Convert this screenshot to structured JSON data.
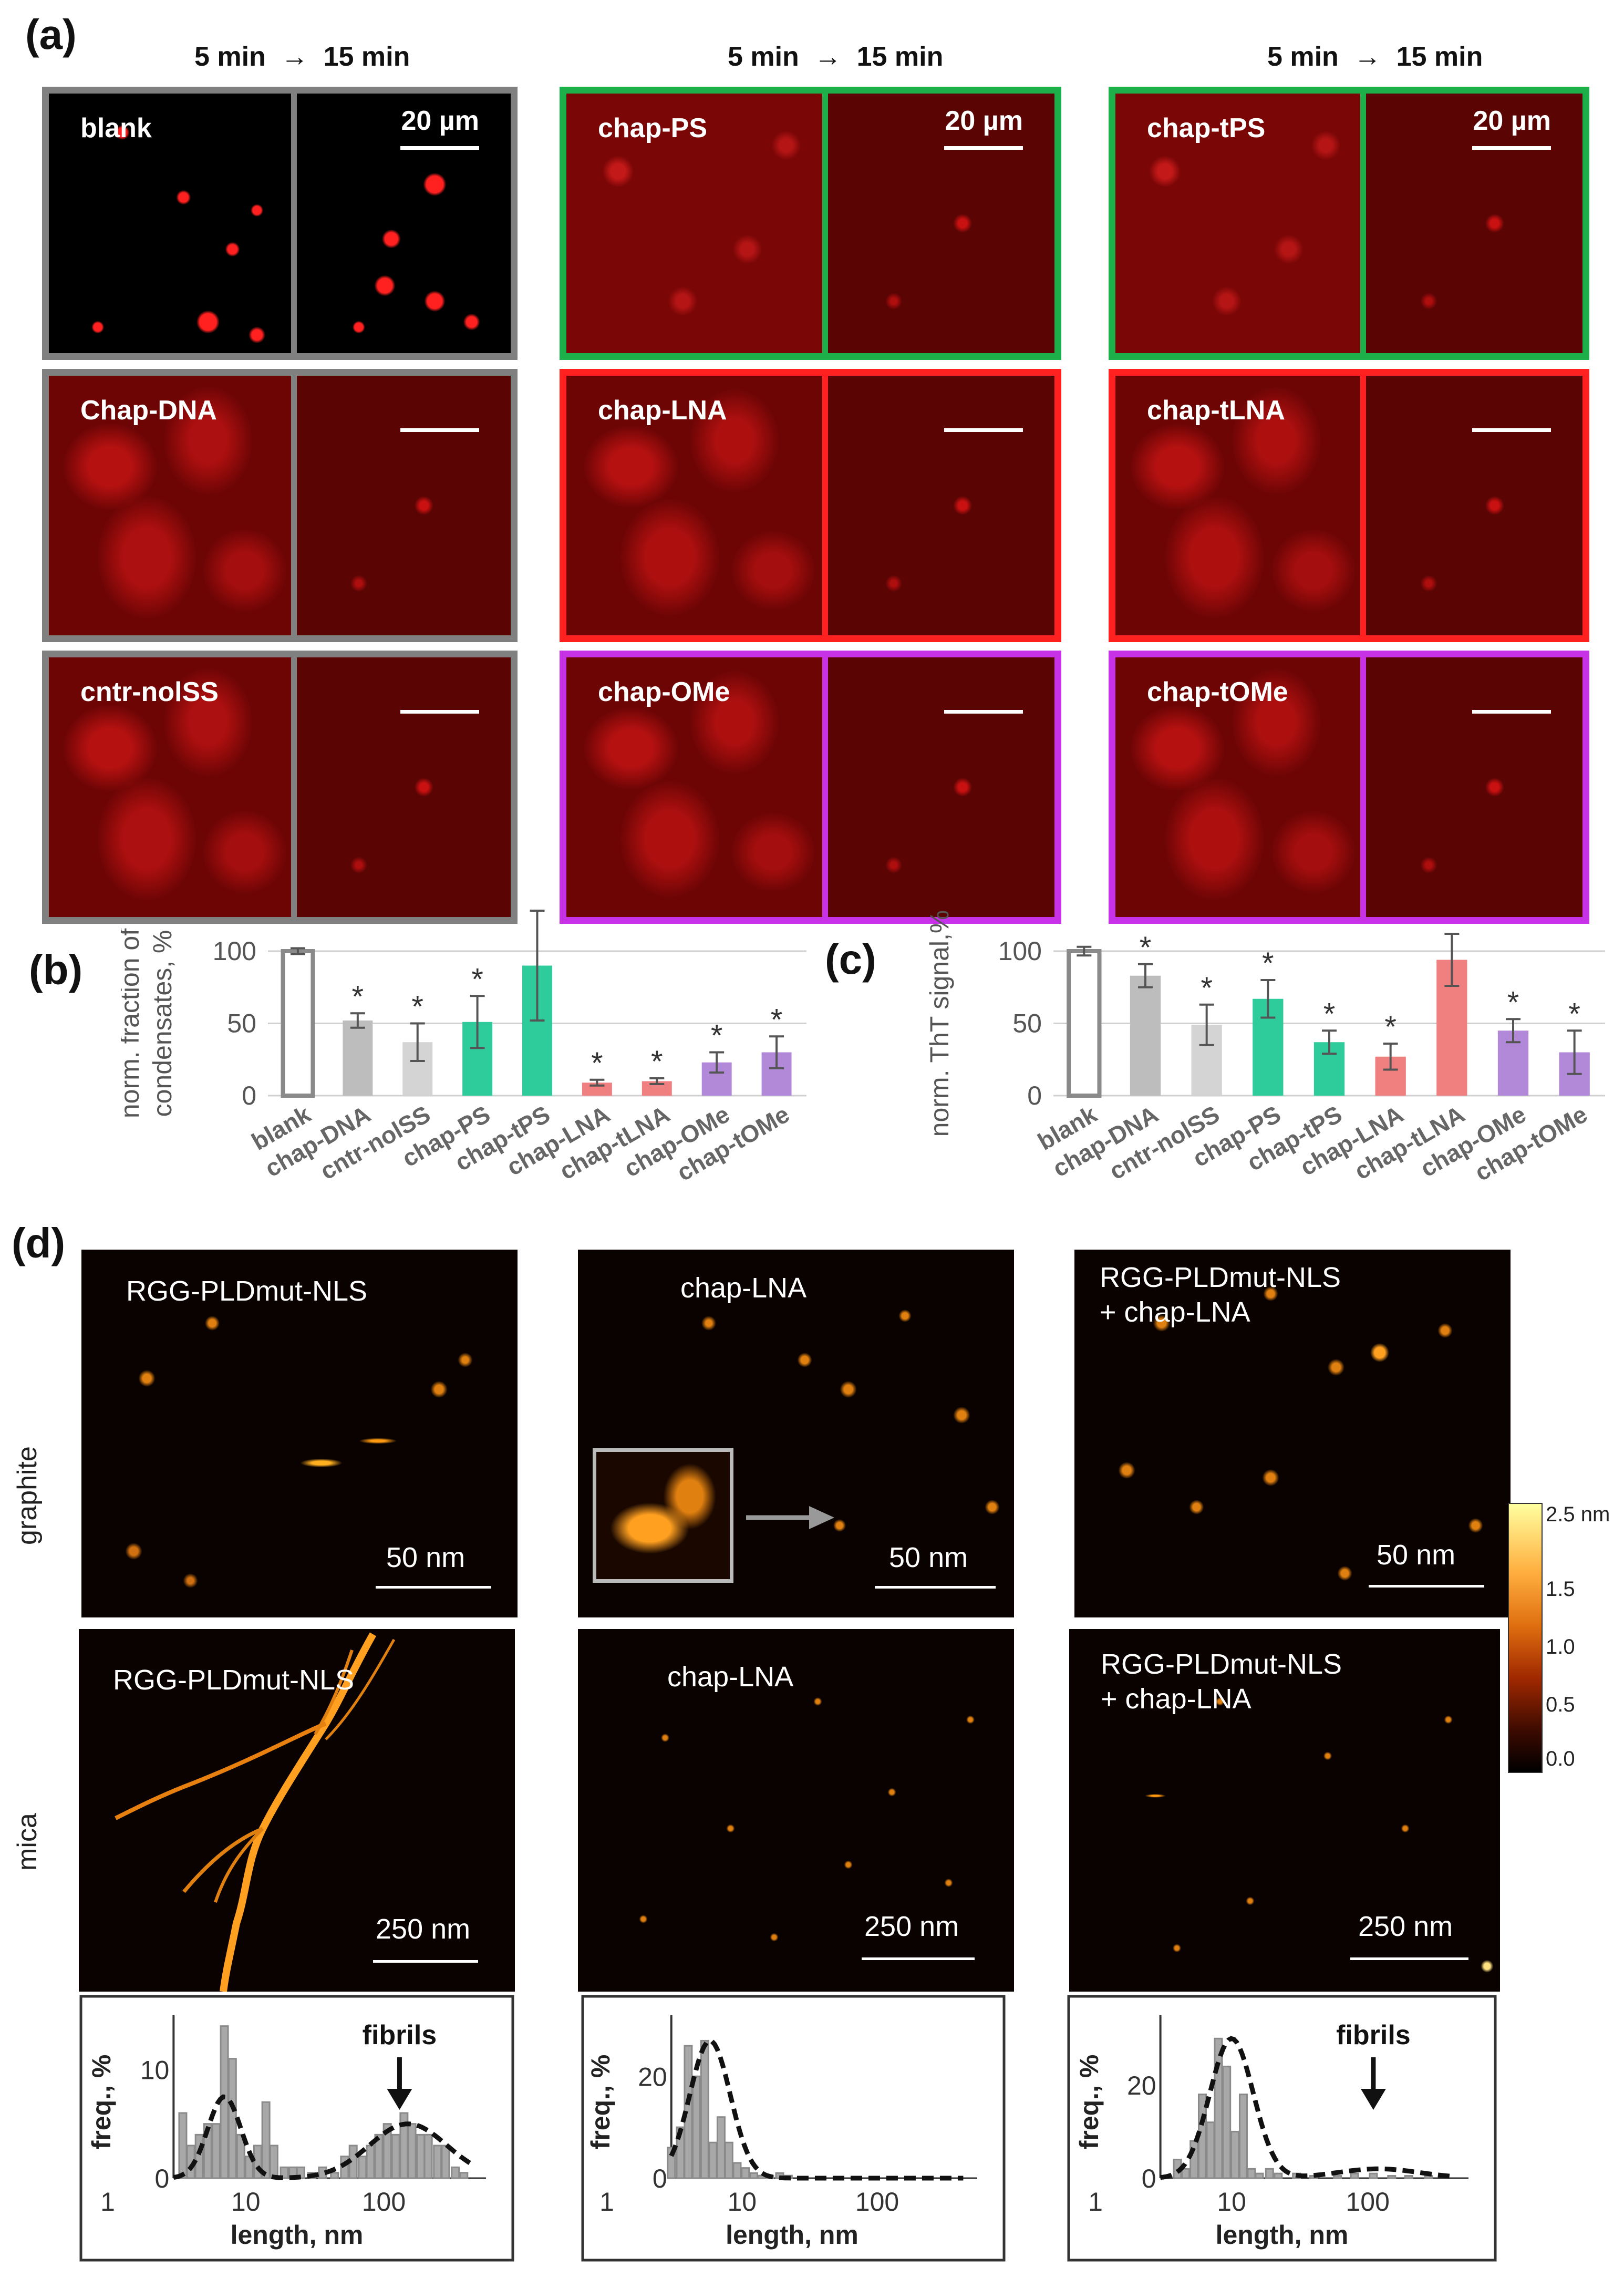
{
  "panel_labels": {
    "a": "(a)",
    "b": "(b)",
    "c": "(c)",
    "d": "(d)"
  },
  "panel_a": {
    "time_header": {
      "start": "5 min",
      "arrow": "→",
      "end": "15 min"
    },
    "scale_label": "20 µm",
    "micrographs": [
      {
        "label": "blank",
        "group": "control",
        "scale_text": true
      },
      {
        "label": "chap-PS",
        "group": "PS",
        "scale_text": true
      },
      {
        "label": "chap-tPS",
        "group": "PS",
        "scale_text": true
      },
      {
        "label": "Chap-DNA",
        "group": "control",
        "scale_text": false
      },
      {
        "label": "chap-LNA",
        "group": "LNA",
        "scale_text": false
      },
      {
        "label": "chap-tLNA",
        "group": "LNA",
        "scale_text": false
      },
      {
        "label": "cntr-nolSS",
        "group": "control",
        "scale_text": false
      },
      {
        "label": "chap-OMe",
        "group": "OMe",
        "scale_text": false
      },
      {
        "label": "chap-tOMe",
        "group": "OMe",
        "scale_text": false
      }
    ],
    "group_colors": {
      "control": "#808080",
      "PS": "#1db04a",
      "LNA": "#ff2020",
      "OMe": "#c832e6"
    }
  },
  "chart_data": [
    {
      "id": "b",
      "type": "bar",
      "ylabel": [
        "norm. fraction of",
        "condensates, %"
      ],
      "ylim": [
        0,
        100
      ],
      "yticks": [
        0,
        50,
        100
      ],
      "grid": true,
      "categories": [
        "blank",
        "chap-DNA",
        "cntr-nolSS",
        "chap-PS",
        "chap-tPS",
        "chap-LNA",
        "chap-tLNA",
        "chap-OMe",
        "chap-tOMe"
      ],
      "values": [
        100,
        52,
        37,
        51,
        90,
        9,
        10,
        23,
        30
      ],
      "errors": [
        2,
        5,
        13,
        18,
        38,
        2,
        2,
        7,
        11
      ],
      "significant": [
        false,
        true,
        true,
        true,
        false,
        true,
        true,
        true,
        true
      ],
      "marker": "*",
      "colors": [
        "#ffffff",
        "#bdbdbd",
        "#d4d4d4",
        "#2ecc9a",
        "#2ecc9a",
        "#f08080",
        "#f08080",
        "#b288d8",
        "#b288d8"
      ]
    },
    {
      "id": "c",
      "type": "bar",
      "ylabel": [
        "norm. ThT signal,%"
      ],
      "ylim": [
        0,
        100
      ],
      "yticks": [
        0,
        50,
        100
      ],
      "grid": true,
      "categories": [
        "blank",
        "chap-DNA",
        "cntr-nolSS",
        "chap-PS",
        "chap-tPS",
        "chap-LNA",
        "chap-tLNA",
        "chap-OMe",
        "chap-tOMe"
      ],
      "values": [
        100,
        83,
        49,
        67,
        37,
        27,
        94,
        45,
        30
      ],
      "errors": [
        3,
        8,
        14,
        13,
        8,
        9,
        18,
        8,
        15
      ],
      "significant": [
        false,
        true,
        true,
        true,
        true,
        true,
        false,
        true,
        true
      ],
      "marker": "*",
      "colors": [
        "#ffffff",
        "#bdbdbd",
        "#d4d4d4",
        "#2ecc9a",
        "#2ecc9a",
        "#f08080",
        "#f08080",
        "#b288d8",
        "#b288d8"
      ]
    },
    {
      "id": "hist1",
      "type": "bar",
      "xlabel": "length, nm",
      "ylabel": "freq., %",
      "x_scale": "log",
      "xticks": [
        1,
        10,
        100
      ],
      "yticks": [
        0,
        10
      ],
      "ylim": [
        0,
        15
      ],
      "annotation": "fibrils",
      "bins": [
        3.5,
        4,
        4.6,
        5.3,
        6.1,
        7,
        8,
        9.2,
        10.6,
        12.2,
        14,
        16,
        19,
        22,
        25,
        30,
        36,
        44,
        52,
        60,
        70,
        80,
        92,
        106,
        122,
        140,
        160,
        185,
        210,
        245,
        280,
        330,
        380
      ],
      "values": [
        6,
        3,
        4,
        5,
        5,
        14,
        11,
        4,
        2,
        3,
        7,
        3,
        1,
        1,
        1,
        0.5,
        1,
        0.5,
        2,
        3,
        2,
        3,
        4,
        5,
        4,
        6,
        5,
        4,
        4,
        3,
        3,
        1,
        0.5
      ]
    },
    {
      "id": "hist2",
      "type": "bar",
      "xlabel": "length, nm",
      "ylabel": "freq., %",
      "x_scale": "log",
      "xticks": [
        1,
        10,
        100
      ],
      "yticks": [
        0,
        20
      ],
      "ylim": [
        0,
        32
      ],
      "bins": [
        3,
        3.5,
        4,
        4.6,
        5.3,
        6.1,
        7,
        8,
        9.2,
        10.6,
        12.2,
        14,
        16,
        19,
        22
      ],
      "values": [
        6,
        10,
        26,
        20,
        27,
        7,
        12,
        7,
        3,
        2,
        1,
        0.5,
        0.5,
        1,
        0.5
      ]
    },
    {
      "id": "hist3",
      "type": "bar",
      "xlabel": "length, nm",
      "ylabel": "freq., %",
      "x_scale": "log",
      "xticks": [
        1,
        10,
        100
      ],
      "yticks": [
        0,
        20
      ],
      "ylim": [
        0,
        35
      ],
      "annotation": "fibrils",
      "bins": [
        4,
        4.6,
        5.3,
        6.1,
        7,
        8,
        9.2,
        10.6,
        12.2,
        14,
        16,
        19,
        22,
        30,
        40,
        60,
        80,
        110,
        150,
        200,
        280
      ],
      "values": [
        4,
        2,
        8,
        18,
        12,
        30,
        24,
        10,
        18,
        2,
        1,
        2,
        1,
        1,
        0.5,
        0.5,
        1,
        1,
        0.5,
        0.5,
        0.5
      ]
    }
  ],
  "panel_d": {
    "row_labels": [
      "graphite",
      "mica"
    ],
    "afm_images": [
      {
        "label": [
          "RGG-PLDmut-NLS"
        ],
        "scale": "50 nm"
      },
      {
        "label": [
          "chap-LNA"
        ],
        "scale": "50 nm"
      },
      {
        "label": [
          "RGG-PLDmut-NLS",
          "+ chap-LNA"
        ],
        "scale": "50 nm"
      },
      {
        "label": [
          "RGG-PLDmut-NLS"
        ],
        "scale": "250 nm"
      },
      {
        "label": [
          "chap-LNA"
        ],
        "scale": "250 nm"
      },
      {
        "label": [
          "RGG-PLDmut-NLS",
          "+ chap-LNA"
        ],
        "scale": "250 nm"
      }
    ],
    "colorbar": {
      "ticks": [
        "2.5 nm",
        "1.5",
        "1.0",
        "0.5",
        "0.0"
      ]
    }
  }
}
